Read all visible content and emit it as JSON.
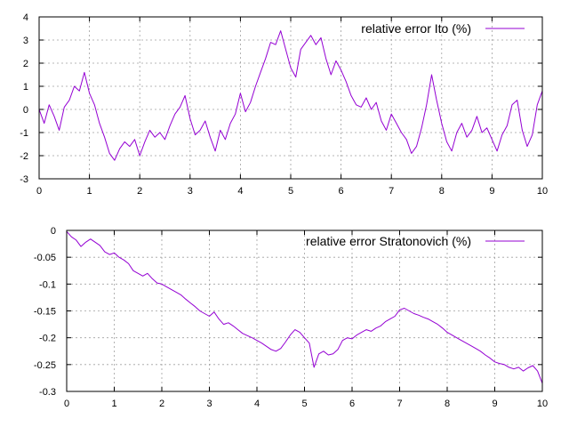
{
  "colors": {
    "series": "#9400d3",
    "grid": "#a0a0a0",
    "frame": "#000000"
  },
  "chart_data": [
    {
      "type": "line",
      "title": "",
      "xlabel": "",
      "ylabel": "",
      "xlim": [
        0,
        10
      ],
      "ylim": [
        -3,
        4
      ],
      "xticks": [
        0,
        1,
        2,
        3,
        4,
        5,
        6,
        7,
        8,
        9,
        10
      ],
      "xtick_labels": [
        "0",
        "1",
        "2",
        "3",
        "4",
        "5",
        "6",
        "7",
        "8",
        "9",
        "10"
      ],
      "yticks": [
        -3,
        -2,
        -1,
        0,
        1,
        2,
        3,
        4
      ],
      "ytick_labels": [
        "-3",
        "-2",
        "-1",
        "0",
        "1",
        "2",
        "3",
        "4"
      ],
      "grid": true,
      "legend": "top-right",
      "series": [
        {
          "name": "relative error Ito (%)",
          "x": [
            0,
            0.1,
            0.2,
            0.3,
            0.4,
            0.5,
            0.6,
            0.7,
            0.8,
            0.9,
            1.0,
            1.1,
            1.2,
            1.3,
            1.4,
            1.5,
            1.6,
            1.7,
            1.8,
            1.9,
            2.0,
            2.1,
            2.2,
            2.3,
            2.4,
            2.5,
            2.6,
            2.7,
            2.8,
            2.9,
            3.0,
            3.1,
            3.2,
            3.3,
            3.4,
            3.5,
            3.6,
            3.7,
            3.8,
            3.9,
            4.0,
            4.1,
            4.2,
            4.3,
            4.4,
            4.5,
            4.6,
            4.7,
            4.8,
            4.9,
            5.0,
            5.1,
            5.2,
            5.3,
            5.4,
            5.5,
            5.6,
            5.7,
            5.8,
            5.9,
            6.0,
            6.1,
            6.2,
            6.3,
            6.4,
            6.5,
            6.6,
            6.7,
            6.8,
            6.9,
            7.0,
            7.1,
            7.2,
            7.3,
            7.4,
            7.5,
            7.6,
            7.7,
            7.8,
            7.9,
            8.0,
            8.1,
            8.2,
            8.3,
            8.4,
            8.5,
            8.6,
            8.7,
            8.8,
            8.9,
            9.0,
            9.1,
            9.2,
            9.3,
            9.4,
            9.5,
            9.6,
            9.7,
            9.8,
            9.9,
            10.0
          ],
          "y": [
            0.0,
            -0.6,
            0.2,
            -0.3,
            -0.9,
            0.1,
            0.4,
            1.0,
            0.8,
            1.6,
            0.7,
            0.2,
            -0.6,
            -1.2,
            -1.9,
            -2.2,
            -1.7,
            -1.4,
            -1.6,
            -1.3,
            -2.0,
            -1.4,
            -0.9,
            -1.2,
            -1.0,
            -1.3,
            -0.7,
            -0.2,
            0.1,
            0.6,
            -0.4,
            -1.1,
            -0.9,
            -0.5,
            -1.2,
            -1.8,
            -0.9,
            -1.3,
            -0.6,
            -0.2,
            0.7,
            -0.1,
            0.3,
            1.0,
            1.6,
            2.2,
            2.9,
            2.8,
            3.4,
            2.6,
            1.8,
            1.4,
            2.6,
            2.9,
            3.2,
            2.8,
            3.1,
            2.2,
            1.5,
            2.1,
            1.7,
            1.2,
            0.6,
            0.2,
            0.1,
            0.5,
            0.0,
            0.3,
            -0.5,
            -0.9,
            -0.2,
            -0.6,
            -1.0,
            -1.3,
            -1.9,
            -1.6,
            -0.8,
            0.2,
            1.5,
            0.4,
            -0.6,
            -1.4,
            -1.8,
            -1.0,
            -0.6,
            -1.2,
            -0.9,
            -0.3,
            -1.0,
            -0.8,
            -1.3,
            -1.8,
            -1.1,
            -0.7,
            0.2,
            0.4,
            -0.9,
            -1.6,
            -1.1,
            0.2,
            0.8
          ]
        }
      ]
    },
    {
      "type": "line",
      "title": "",
      "xlabel": "",
      "ylabel": "",
      "xlim": [
        0,
        10
      ],
      "ylim": [
        -0.3,
        0
      ],
      "xticks": [
        0,
        1,
        2,
        3,
        4,
        5,
        6,
        7,
        8,
        9,
        10
      ],
      "xtick_labels": [
        "0",
        "1",
        "2",
        "3",
        "4",
        "5",
        "6",
        "7",
        "8",
        "9",
        "10"
      ],
      "yticks": [
        -0.3,
        -0.25,
        -0.2,
        -0.15,
        -0.1,
        -0.05,
        0
      ],
      "ytick_labels": [
        "-0.3",
        "-0.25",
        "-0.2",
        "-0.15",
        "-0.1",
        "-0.05",
        "0"
      ],
      "grid": true,
      "legend": "top-right",
      "series": [
        {
          "name": "relative error Stratonovich (%)",
          "x": [
            0,
            0.1,
            0.2,
            0.3,
            0.4,
            0.5,
            0.6,
            0.7,
            0.8,
            0.9,
            1.0,
            1.1,
            1.2,
            1.3,
            1.4,
            1.5,
            1.6,
            1.7,
            1.8,
            1.9,
            2.0,
            2.1,
            2.2,
            2.3,
            2.4,
            2.5,
            2.6,
            2.7,
            2.8,
            2.9,
            3.0,
            3.1,
            3.2,
            3.3,
            3.4,
            3.5,
            3.6,
            3.7,
            3.8,
            3.9,
            4.0,
            4.1,
            4.2,
            4.3,
            4.4,
            4.5,
            4.6,
            4.7,
            4.8,
            4.9,
            5.0,
            5.1,
            5.2,
            5.3,
            5.4,
            5.5,
            5.6,
            5.7,
            5.8,
            5.9,
            6.0,
            6.1,
            6.2,
            6.3,
            6.4,
            6.5,
            6.6,
            6.7,
            6.8,
            6.9,
            7.0,
            7.1,
            7.2,
            7.3,
            7.4,
            7.5,
            7.6,
            7.7,
            7.8,
            7.9,
            8.0,
            8.1,
            8.2,
            8.3,
            8.4,
            8.5,
            8.6,
            8.7,
            8.8,
            8.9,
            9.0,
            9.1,
            9.2,
            9.3,
            9.4,
            9.5,
            9.6,
            9.7,
            9.8,
            9.9,
            10.0
          ],
          "y": [
            -0.002,
            -0.012,
            -0.018,
            -0.03,
            -0.022,
            -0.016,
            -0.022,
            -0.028,
            -0.04,
            -0.045,
            -0.042,
            -0.05,
            -0.055,
            -0.062,
            -0.075,
            -0.08,
            -0.085,
            -0.08,
            -0.09,
            -0.098,
            -0.1,
            -0.105,
            -0.11,
            -0.115,
            -0.12,
            -0.128,
            -0.135,
            -0.142,
            -0.15,
            -0.155,
            -0.16,
            -0.152,
            -0.165,
            -0.175,
            -0.172,
            -0.178,
            -0.185,
            -0.192,
            -0.196,
            -0.2,
            -0.205,
            -0.21,
            -0.216,
            -0.222,
            -0.225,
            -0.22,
            -0.208,
            -0.195,
            -0.185,
            -0.19,
            -0.2,
            -0.21,
            -0.255,
            -0.23,
            -0.225,
            -0.232,
            -0.23,
            -0.222,
            -0.205,
            -0.2,
            -0.202,
            -0.195,
            -0.19,
            -0.185,
            -0.188,
            -0.182,
            -0.178,
            -0.17,
            -0.165,
            -0.16,
            -0.148,
            -0.145,
            -0.15,
            -0.155,
            -0.158,
            -0.162,
            -0.165,
            -0.17,
            -0.175,
            -0.182,
            -0.19,
            -0.195,
            -0.2,
            -0.205,
            -0.21,
            -0.215,
            -0.22,
            -0.225,
            -0.232,
            -0.238,
            -0.245,
            -0.248,
            -0.25,
            -0.255,
            -0.258,
            -0.255,
            -0.262,
            -0.256,
            -0.252,
            -0.262,
            -0.285
          ]
        }
      ]
    }
  ]
}
